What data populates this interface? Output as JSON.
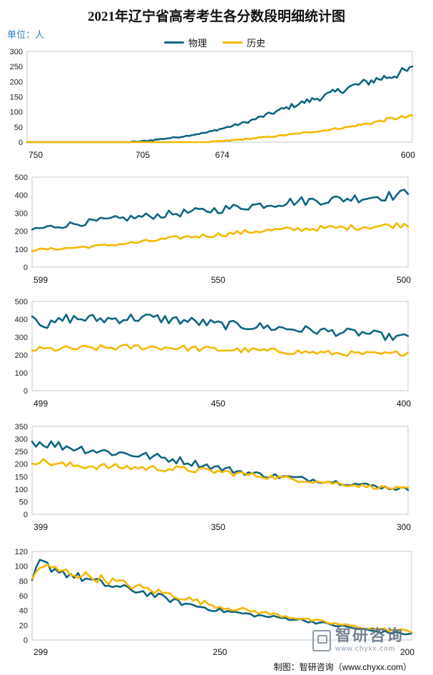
{
  "header": {
    "title": "2021年辽宁省高考考生各分数段明细统计图",
    "unit": "单位：人"
  },
  "legend": {
    "physics": "物理",
    "history": "历史"
  },
  "colors": {
    "physics": "#0f6582",
    "history": "#f5b800",
    "axis": "#999999",
    "frame": "#c8c8c8"
  },
  "chart_data": [
    {
      "type": "line",
      "title": "",
      "x_range": [
        750,
        600
      ],
      "ylim": [
        0,
        300
      ],
      "y_ticks": [
        0,
        50,
        100,
        150,
        200,
        250,
        300
      ],
      "x_tick_labels": [
        "750",
        "705",
        "674",
        "600"
      ],
      "series": [
        {
          "name": "物理",
          "anchors": [
            [
              750,
              0
            ],
            [
              710,
              0
            ],
            [
              705,
              3
            ],
            [
              700,
              8
            ],
            [
              690,
              18
            ],
            [
              680,
              32
            ],
            [
              674,
              45
            ],
            [
              665,
              65
            ],
            [
              655,
              95
            ],
            [
              645,
              125
            ],
            [
              635,
              150
            ],
            [
              625,
              180
            ],
            [
              615,
              205
            ],
            [
              608,
              220
            ],
            [
              600,
              240
            ]
          ]
        },
        {
          "name": "历史",
          "anchors": [
            [
              750,
              0
            ],
            [
              680,
              0
            ],
            [
              674,
              3
            ],
            [
              665,
              10
            ],
            [
              655,
              18
            ],
            [
              645,
              28
            ],
            [
              635,
              38
            ],
            [
              625,
              50
            ],
            [
              615,
              65
            ],
            [
              608,
              78
            ],
            [
              600,
              85
            ]
          ]
        }
      ]
    },
    {
      "type": "line",
      "title": "",
      "x_range": [
        599,
        500
      ],
      "ylim": [
        0,
        500
      ],
      "y_ticks": [
        0,
        100,
        200,
        300,
        400,
        500
      ],
      "x_tick_labels": [
        "599",
        "550",
        "500"
      ],
      "series": [
        {
          "name": "物理",
          "anchors": [
            [
              599,
              210
            ],
            [
              590,
              235
            ],
            [
              580,
              260
            ],
            [
              570,
              280
            ],
            [
              560,
              300
            ],
            [
              550,
              320
            ],
            [
              540,
              345
            ],
            [
              530,
              365
            ],
            [
              520,
              375
            ],
            [
              510,
              390
            ],
            [
              502,
              400
            ],
            [
              500,
              425
            ]
          ]
        },
        {
          "name": "历史",
          "anchors": [
            [
              599,
              95
            ],
            [
              590,
              105
            ],
            [
              580,
              120
            ],
            [
              570,
              140
            ],
            [
              560,
              165
            ],
            [
              550,
              180
            ],
            [
              540,
              200
            ],
            [
              530,
              210
            ],
            [
              520,
              218
            ],
            [
              510,
              225
            ],
            [
              502,
              235
            ],
            [
              500,
              240
            ]
          ]
        }
      ]
    },
    {
      "type": "line",
      "title": "",
      "x_range": [
        499,
        400
      ],
      "ylim": [
        0,
        500
      ],
      "y_ticks": [
        0,
        100,
        200,
        300,
        400,
        500
      ],
      "x_tick_labels": [
        "499",
        "450",
        "400"
      ],
      "series": [
        {
          "name": "物理",
          "anchors": [
            [
              499,
              425
            ],
            [
              495,
              360
            ],
            [
              490,
              405
            ],
            [
              480,
              400
            ],
            [
              470,
              410
            ],
            [
              460,
              395
            ],
            [
              450,
              370
            ],
            [
              440,
              360
            ],
            [
              430,
              345
            ],
            [
              420,
              330
            ],
            [
              410,
              320
            ],
            [
              405,
              300
            ],
            [
              400,
              300
            ]
          ]
        },
        {
          "name": "历史",
          "anchors": [
            [
              499,
              230
            ],
            [
              490,
              235
            ],
            [
              480,
              240
            ],
            [
              470,
              245
            ],
            [
              460,
              240
            ],
            [
              450,
              230
            ],
            [
              440,
              225
            ],
            [
              430,
              218
            ],
            [
              420,
              210
            ],
            [
              410,
              205
            ],
            [
              405,
              205
            ],
            [
              400,
              215
            ]
          ]
        }
      ]
    },
    {
      "type": "line",
      "title": "",
      "x_range": [
        399,
        300
      ],
      "ylim": [
        0,
        350
      ],
      "y_ticks": [
        0,
        50,
        100,
        150,
        200,
        250,
        300,
        350
      ],
      "x_tick_labels": [
        "399",
        "350",
        "300"
      ],
      "series": [
        {
          "name": "物理",
          "anchors": [
            [
              399,
              290
            ],
            [
              390,
              270
            ],
            [
              380,
              250
            ],
            [
              370,
              235
            ],
            [
              360,
              215
            ],
            [
              350,
              185
            ],
            [
              340,
              160
            ],
            [
              330,
              145
            ],
            [
              320,
              130
            ],
            [
              310,
              115
            ],
            [
              305,
              105
            ],
            [
              300,
              100
            ]
          ]
        },
        {
          "name": "历史",
          "anchors": [
            [
              399,
              215
            ],
            [
              390,
              195
            ],
            [
              380,
              190
            ],
            [
              370,
              185
            ],
            [
              360,
              180
            ],
            [
              350,
              170
            ],
            [
              340,
              155
            ],
            [
              330,
              140
            ],
            [
              320,
              125
            ],
            [
              310,
              110
            ],
            [
              305,
              105
            ],
            [
              300,
              100
            ]
          ]
        }
      ]
    },
    {
      "type": "line",
      "title": "",
      "x_range": [
        299,
        200
      ],
      "ylim": [
        0,
        120
      ],
      "y_ticks": [
        0,
        20,
        40,
        60,
        80,
        100,
        120
      ],
      "x_tick_labels": [
        "299",
        "250",
        "200"
      ],
      "series": [
        {
          "name": "物理",
          "anchors": [
            [
              299,
              80
            ],
            [
              297,
              105
            ],
            [
              290,
              90
            ],
            [
              280,
              75
            ],
            [
              270,
              65
            ],
            [
              260,
              50
            ],
            [
              250,
              40
            ],
            [
              240,
              33
            ],
            [
              230,
              28
            ],
            [
              220,
              20
            ],
            [
              210,
              12
            ],
            [
              200,
              8
            ]
          ]
        },
        {
          "name": "历史",
          "anchors": [
            [
              299,
              82
            ],
            [
              297,
              100
            ],
            [
              290,
              92
            ],
            [
              280,
              82
            ],
            [
              270,
              70
            ],
            [
              260,
              58
            ],
            [
              250,
              45
            ],
            [
              240,
              38
            ],
            [
              230,
              30
            ],
            [
              220,
              22
            ],
            [
              210,
              15
            ],
            [
              200,
              12
            ]
          ]
        }
      ]
    }
  ],
  "watermark": {
    "name": "智研咨询",
    "url": "www.chyxx.com"
  },
  "footer": {
    "credit": "制图：智研咨询（www.chyxx.com）"
  }
}
